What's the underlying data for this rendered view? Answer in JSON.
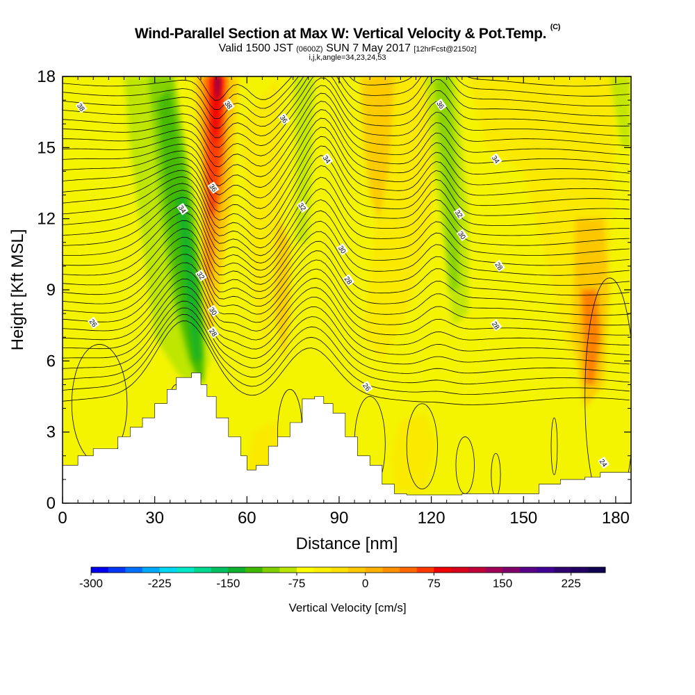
{
  "title": {
    "main": "Wind-Parallel Section at Max W: Vertical Velocity & Pot.Temp.",
    "copyright": "(C)",
    "valid_a": "Valid 1500 JST",
    "valid_utc": "(0600Z)",
    "valid_b": "SUN 7 May 2017",
    "forecast": "[12hrFcst@2150z]",
    "indices": "i,j,k,angle=34,23,24,53"
  },
  "chart_data": {
    "type": "heatmap",
    "title": "Wind-Parallel Section at Max W: Vertical Velocity & Pot.Temp.",
    "xlabel": "Distance [nm]",
    "ylabel": "Height [Kft MSL]",
    "xlim": [
      0,
      185
    ],
    "ylim": [
      0,
      18
    ],
    "xticks": [
      "0",
      "30",
      "60",
      "90",
      "120",
      "150",
      "180"
    ],
    "yticks": [
      "0",
      "3",
      "6",
      "9",
      "12",
      "15",
      "18"
    ],
    "colorbar": {
      "label": "Vertical Velocity [cm/s]",
      "ticks": [
        "-300",
        "-225",
        "-150",
        "-75",
        "0",
        "75",
        "150",
        "225"
      ],
      "min": -300,
      "max": 262.5,
      "step": 18.75,
      "colors": [
        "#0000ee",
        "#0035f5",
        "#0070fa",
        "#00a8fc",
        "#00d8f2",
        "#00e8c8",
        "#00d890",
        "#00c060",
        "#10b030",
        "#40b800",
        "#80d000",
        "#b8e400",
        "#ffff00",
        "#fff000",
        "#ffe000",
        "#ffc800",
        "#ffb000",
        "#ff9000",
        "#ff6800",
        "#ff3800",
        "#ee0000",
        "#d8001a",
        "#c00038",
        "#a00058",
        "#80006a",
        "#580088",
        "#400094",
        "#300070",
        "#200060",
        "#100050"
      ]
    },
    "terrain_kft": [
      [
        0,
        1.6
      ],
      [
        5,
        2
      ],
      [
        10,
        2.3
      ],
      [
        18,
        2.8
      ],
      [
        22,
        3.2
      ],
      [
        26,
        3.6
      ],
      [
        30,
        4.2
      ],
      [
        34,
        4.8
      ],
      [
        37,
        5.3
      ],
      [
        42,
        5.5
      ],
      [
        45,
        5
      ],
      [
        47,
        4.5
      ],
      [
        50,
        3.6
      ],
      [
        54,
        2.8
      ],
      [
        58,
        2
      ],
      [
        60,
        1.4
      ],
      [
        63,
        1.6
      ],
      [
        67,
        2.4
      ],
      [
        70,
        2.8
      ],
      [
        74,
        3.4
      ],
      [
        78,
        4.4
      ],
      [
        82,
        4.5
      ],
      [
        85,
        4.2
      ],
      [
        88,
        3.8
      ],
      [
        92,
        2.8
      ],
      [
        96,
        2
      ],
      [
        100,
        1.6
      ],
      [
        104,
        0.8
      ],
      [
        108,
        0.4
      ],
      [
        112,
        0.35
      ],
      [
        130,
        0.4
      ],
      [
        140,
        0.4
      ],
      [
        150,
        0.4
      ],
      [
        155,
        0.8
      ],
      [
        162,
        1
      ],
      [
        170,
        1.1
      ],
      [
        175,
        1.3
      ],
      [
        185,
        1.3
      ]
    ],
    "theta_contour_labels": [
      {
        "text": "38",
        "x": 6,
        "y": 16.7
      },
      {
        "text": "38",
        "x": 54,
        "y": 16.8
      },
      {
        "text": "36",
        "x": 72,
        "y": 16.2
      },
      {
        "text": "36",
        "x": 123,
        "y": 16.8
      },
      {
        "text": "34",
        "x": 86,
        "y": 14.5
      },
      {
        "text": "34",
        "x": 141,
        "y": 14.5
      },
      {
        "text": "36",
        "x": 49,
        "y": 13.3
      },
      {
        "text": "34",
        "x": 39,
        "y": 12.4
      },
      {
        "text": "32",
        "x": 78,
        "y": 12.5
      },
      {
        "text": "32",
        "x": 129,
        "y": 12.2
      },
      {
        "text": "30",
        "x": 91,
        "y": 10.7
      },
      {
        "text": "30",
        "x": 130,
        "y": 11.3
      },
      {
        "text": "28",
        "x": 142,
        "y": 10
      },
      {
        "text": "32",
        "x": 45,
        "y": 9.6
      },
      {
        "text": "28",
        "x": 93,
        "y": 9.4
      },
      {
        "text": "30",
        "x": 49,
        "y": 8.1
      },
      {
        "text": "28",
        "x": 49,
        "y": 7.2
      },
      {
        "text": "26",
        "x": 10,
        "y": 7.6
      },
      {
        "text": "28",
        "x": 141,
        "y": 7.5
      },
      {
        "text": "26",
        "x": 99,
        "y": 4.9
      },
      {
        "text": "24",
        "x": 176,
        "y": 1.7
      }
    ]
  }
}
